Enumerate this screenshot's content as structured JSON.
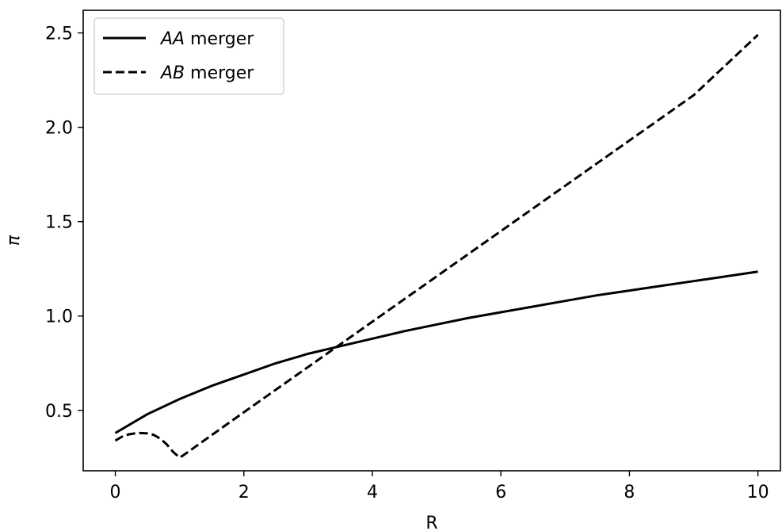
{
  "chart_data": {
    "type": "line",
    "title": "",
    "xlabel": "R",
    "ylabel": "π",
    "xlim": [
      -0.5,
      10.35
    ],
    "ylim": [
      0.18,
      2.62
    ],
    "xticks": [
      0,
      2,
      4,
      6,
      8,
      10
    ],
    "yticks": [
      0.5,
      1.0,
      1.5,
      2.0,
      2.5
    ],
    "xtick_labels": [
      "0",
      "2",
      "4",
      "6",
      "8",
      "10"
    ],
    "ytick_labels": [
      "0.5",
      "1.0",
      "1.5",
      "2.0",
      "2.5"
    ],
    "grid": false,
    "legend_position": "top-left",
    "series": [
      {
        "name_prefix": "AA",
        "name_suffix": " merger",
        "style": "solid",
        "color": "#000000",
        "x": [
          0,
          0.5,
          1,
          1.5,
          2,
          2.5,
          3,
          3.5,
          4,
          4.5,
          5,
          5.5,
          6,
          6.5,
          7,
          7.5,
          8,
          8.5,
          9,
          9.5,
          10
        ],
        "y": [
          0.38,
          0.48,
          0.56,
          0.63,
          0.69,
          0.75,
          0.8,
          0.84,
          0.88,
          0.92,
          0.955,
          0.99,
          1.02,
          1.05,
          1.08,
          1.11,
          1.135,
          1.16,
          1.185,
          1.21,
          1.235
        ]
      },
      {
        "name_prefix": "AB",
        "name_suffix": " merger",
        "style": "dashed",
        "color": "#000000",
        "x": [
          0,
          0.1,
          0.2,
          0.3,
          0.4,
          0.5,
          0.6,
          0.7,
          0.8,
          0.9,
          1.0,
          1.05,
          2,
          3,
          4,
          5,
          6,
          7,
          8,
          9,
          10
        ],
        "y": [
          0.34,
          0.36,
          0.372,
          0.378,
          0.38,
          0.378,
          0.37,
          0.35,
          0.32,
          0.28,
          0.25,
          0.26,
          0.49,
          0.73,
          0.97,
          1.21,
          1.45,
          1.69,
          1.93,
          2.17,
          2.49
        ]
      }
    ]
  }
}
